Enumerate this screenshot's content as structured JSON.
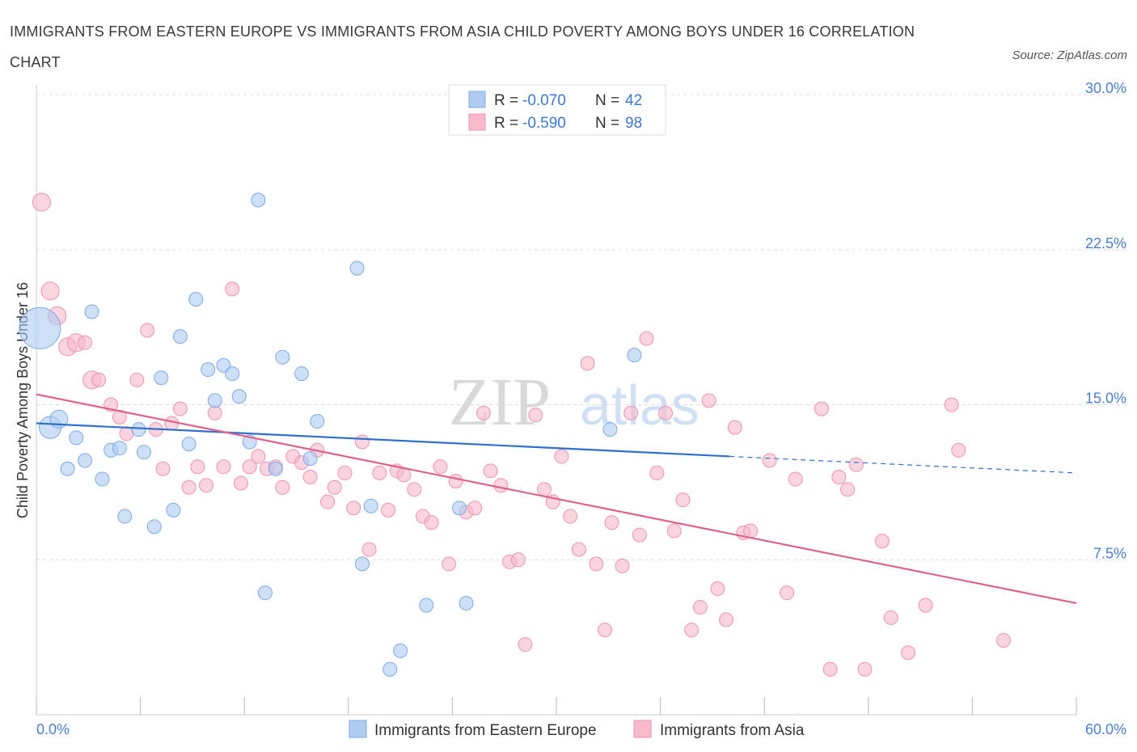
{
  "title": "IMMIGRANTS FROM EASTERN EUROPE VS IMMIGRANTS FROM ASIA CHILD POVERTY AMONG BOYS UNDER 16 CORRELATION CHART",
  "source": "Source: ZipAtlas.com",
  "watermark": "ZIPatlas",
  "colors": {
    "blue_fill": "#aecbf2",
    "blue_line": "#2f6fce",
    "pink_fill": "#f7b9cb",
    "pink_line": "#e0608a",
    "axis_text": "#4a7fd0"
  },
  "legend": {
    "rows": [
      {
        "r_label": "R =",
        "r_value": "-0.070",
        "n_label": "N =",
        "n_value": "42"
      },
      {
        "r_label": "R =",
        "r_value": "-0.590",
        "n_label": "N =",
        "n_value": "98"
      }
    ]
  },
  "bottom_legend": [
    "Immigrants from Eastern Europe",
    "Immigrants from Asia"
  ],
  "chart_data": {
    "type": "scatter",
    "ylabel": "Child Poverty Among Boys Under 16",
    "x_ticks": [
      "0.0%",
      "60.0%"
    ],
    "y_ticks": [
      "7.5%",
      "15.0%",
      "22.5%",
      "30.0%"
    ],
    "xlim": [
      0,
      60
    ],
    "ylim": [
      0,
      30
    ],
    "grid": "horizontal dashed",
    "legend_position": "top-center",
    "series": [
      {
        "name": "Immigrants from Eastern Europe",
        "trend": {
          "x0": 0,
          "y0": 14.1,
          "x1": 40,
          "y1": 12.5,
          "dashed_to_x": 60,
          "dashed_to_y": 11.7
        },
        "points": [
          [
            0.2,
            18.7,
            3
          ],
          [
            0.8,
            13.9,
            1.6
          ],
          [
            1.3,
            14.3,
            1.3
          ],
          [
            1.8,
            11.9,
            1
          ],
          [
            2.3,
            13.4,
            1
          ],
          [
            2.8,
            12.3,
            1
          ],
          [
            3.2,
            19.5,
            1
          ],
          [
            3.8,
            11.4,
            1
          ],
          [
            4.3,
            12.8,
            1
          ],
          [
            4.8,
            12.9,
            1
          ],
          [
            5.1,
            9.6,
            1
          ],
          [
            5.9,
            13.8,
            1
          ],
          [
            6.2,
            12.7,
            1
          ],
          [
            6.8,
            9.1,
            1
          ],
          [
            7.2,
            16.3,
            1
          ],
          [
            7.9,
            9.9,
            1
          ],
          [
            8.3,
            18.3,
            1
          ],
          [
            8.8,
            13.1,
            1
          ],
          [
            9.2,
            20.1,
            1
          ],
          [
            9.9,
            16.7,
            1
          ],
          [
            10.3,
            15.2,
            1
          ],
          [
            10.8,
            16.9,
            1
          ],
          [
            11.3,
            16.5,
            1
          ],
          [
            11.7,
            15.4,
            1
          ],
          [
            12.3,
            13.2,
            1
          ],
          [
            12.8,
            24.9,
            1
          ],
          [
            13.2,
            5.9,
            1
          ],
          [
            13.8,
            11.9,
            1
          ],
          [
            14.2,
            17.3,
            1
          ],
          [
            15.3,
            16.5,
            1
          ],
          [
            15.8,
            12.4,
            1
          ],
          [
            16.2,
            14.2,
            1
          ],
          [
            18.5,
            21.6,
            1
          ],
          [
            18.8,
            7.3,
            1
          ],
          [
            19.3,
            10.1,
            1
          ],
          [
            20.4,
            2.2,
            1
          ],
          [
            21.0,
            3.1,
            1
          ],
          [
            22.5,
            5.3,
            1
          ],
          [
            24.4,
            10.0,
            1
          ],
          [
            24.8,
            5.4,
            1
          ],
          [
            33.1,
            13.8,
            1
          ],
          [
            34.5,
            17.4,
            1
          ]
        ]
      },
      {
        "name": "Immigrants from Asia",
        "trend": {
          "x0": 0,
          "y0": 15.5,
          "x1": 60,
          "y1": 5.4
        },
        "points": [
          [
            0.3,
            24.8,
            1.3
          ],
          [
            0.8,
            20.5,
            1.3
          ],
          [
            1.2,
            19.3,
            1.3
          ],
          [
            1.8,
            17.8,
            1.3
          ],
          [
            2.3,
            18.0,
            1.3
          ],
          [
            2.8,
            18.0,
            1
          ],
          [
            3.2,
            16.2,
            1.3
          ],
          [
            3.6,
            16.2,
            1
          ],
          [
            4.3,
            15.0,
            1
          ],
          [
            4.8,
            14.4,
            1
          ],
          [
            5.2,
            13.6,
            1
          ],
          [
            5.8,
            16.2,
            1
          ],
          [
            6.4,
            18.6,
            1
          ],
          [
            6.9,
            13.8,
            1
          ],
          [
            7.3,
            11.9,
            1
          ],
          [
            7.8,
            14.1,
            1
          ],
          [
            8.3,
            14.8,
            1
          ],
          [
            8.8,
            11.0,
            1
          ],
          [
            9.3,
            12.0,
            1
          ],
          [
            9.8,
            11.1,
            1
          ],
          [
            10.3,
            14.6,
            1
          ],
          [
            10.8,
            12.0,
            1
          ],
          [
            11.3,
            20.6,
            1
          ],
          [
            11.8,
            11.2,
            1
          ],
          [
            12.3,
            12.0,
            1
          ],
          [
            12.8,
            12.5,
            1
          ],
          [
            13.3,
            11.9,
            1
          ],
          [
            13.8,
            12.0,
            1
          ],
          [
            14.2,
            11.0,
            1
          ],
          [
            14.8,
            12.5,
            1
          ],
          [
            15.3,
            12.2,
            1
          ],
          [
            15.8,
            11.5,
            1
          ],
          [
            16.2,
            12.8,
            1
          ],
          [
            16.8,
            10.3,
            1
          ],
          [
            17.2,
            11.0,
            1
          ],
          [
            17.8,
            11.7,
            1
          ],
          [
            18.3,
            10.0,
            1
          ],
          [
            18.8,
            13.2,
            1
          ],
          [
            19.2,
            8.0,
            1
          ],
          [
            19.8,
            11.7,
            1
          ],
          [
            20.3,
            9.9,
            1
          ],
          [
            20.8,
            11.8,
            1
          ],
          [
            21.2,
            11.6,
            1
          ],
          [
            21.8,
            10.9,
            1
          ],
          [
            22.3,
            9.6,
            1
          ],
          [
            22.8,
            9.3,
            1
          ],
          [
            23.3,
            12.0,
            1
          ],
          [
            23.8,
            7.3,
            1
          ],
          [
            24.2,
            11.3,
            1
          ],
          [
            24.8,
            9.8,
            1
          ],
          [
            25.3,
            10.0,
            1
          ],
          [
            25.8,
            14.6,
            1
          ],
          [
            26.2,
            11.8,
            1
          ],
          [
            26.8,
            11.1,
            1
          ],
          [
            27.3,
            7.4,
            1
          ],
          [
            27.8,
            7.5,
            1
          ],
          [
            28.2,
            3.4,
            1
          ],
          [
            28.8,
            14.5,
            1
          ],
          [
            29.3,
            10.9,
            1
          ],
          [
            29.8,
            10.3,
            1
          ],
          [
            30.3,
            12.5,
            1
          ],
          [
            30.8,
            9.6,
            1
          ],
          [
            31.3,
            8.0,
            1
          ],
          [
            31.8,
            17.0,
            1
          ],
          [
            32.3,
            7.3,
            1
          ],
          [
            32.8,
            4.1,
            1
          ],
          [
            33.2,
            9.3,
            1
          ],
          [
            33.8,
            7.2,
            1
          ],
          [
            34.3,
            14.6,
            1
          ],
          [
            34.8,
            8.7,
            1
          ],
          [
            35.2,
            18.2,
            1
          ],
          [
            35.8,
            11.7,
            1
          ],
          [
            36.3,
            14.6,
            1
          ],
          [
            36.8,
            8.9,
            1
          ],
          [
            37.3,
            10.4,
            1
          ],
          [
            37.8,
            4.1,
            1
          ],
          [
            38.3,
            5.2,
            1
          ],
          [
            38.8,
            15.2,
            1
          ],
          [
            39.3,
            6.1,
            1
          ],
          [
            39.8,
            4.6,
            1
          ],
          [
            40.3,
            13.9,
            1
          ],
          [
            40.8,
            8.8,
            1
          ],
          [
            41.2,
            8.9,
            1
          ],
          [
            42.3,
            12.3,
            1
          ],
          [
            43.3,
            5.9,
            1
          ],
          [
            43.8,
            11.4,
            1
          ],
          [
            45.3,
            14.8,
            1
          ],
          [
            45.8,
            2.2,
            1
          ],
          [
            46.3,
            11.5,
            1
          ],
          [
            46.8,
            10.9,
            1
          ],
          [
            47.3,
            12.1,
            1
          ],
          [
            47.8,
            2.2,
            1
          ],
          [
            48.8,
            8.4,
            1
          ],
          [
            49.3,
            4.7,
            1
          ],
          [
            50.3,
            3.0,
            1
          ],
          [
            51.3,
            5.3,
            1
          ],
          [
            52.8,
            15.0,
            1
          ],
          [
            53.2,
            12.8,
            1
          ],
          [
            55.8,
            3.6,
            1
          ]
        ]
      }
    ]
  }
}
